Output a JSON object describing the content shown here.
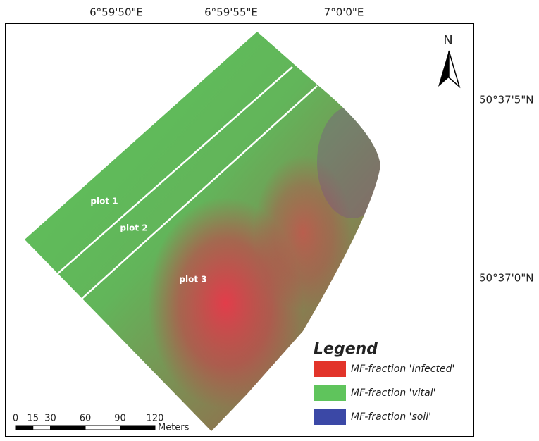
{
  "map": {
    "x_labels": [
      "6°59'50\"E",
      "6°59'55\"E",
      "7°0'0\"E"
    ],
    "y_labels": [
      "50°37'5\"N",
      "50°37'0\"N"
    ],
    "north": "N",
    "plots": [
      "plot 1",
      "plot 2",
      "plot 3"
    ]
  },
  "legend": {
    "title": "Legend",
    "items": [
      {
        "label": "MF-fraction 'infected'",
        "color": "#e2342a"
      },
      {
        "label": "MF-fraction 'vital'",
        "color": "#5fc45c"
      },
      {
        "label": "MF-fraction 'soil'",
        "color": "#3b48a6"
      }
    ]
  },
  "scale_bar": {
    "ticks": [
      0,
      15,
      30,
      60,
      90,
      120
    ],
    "unit": "Meters"
  }
}
